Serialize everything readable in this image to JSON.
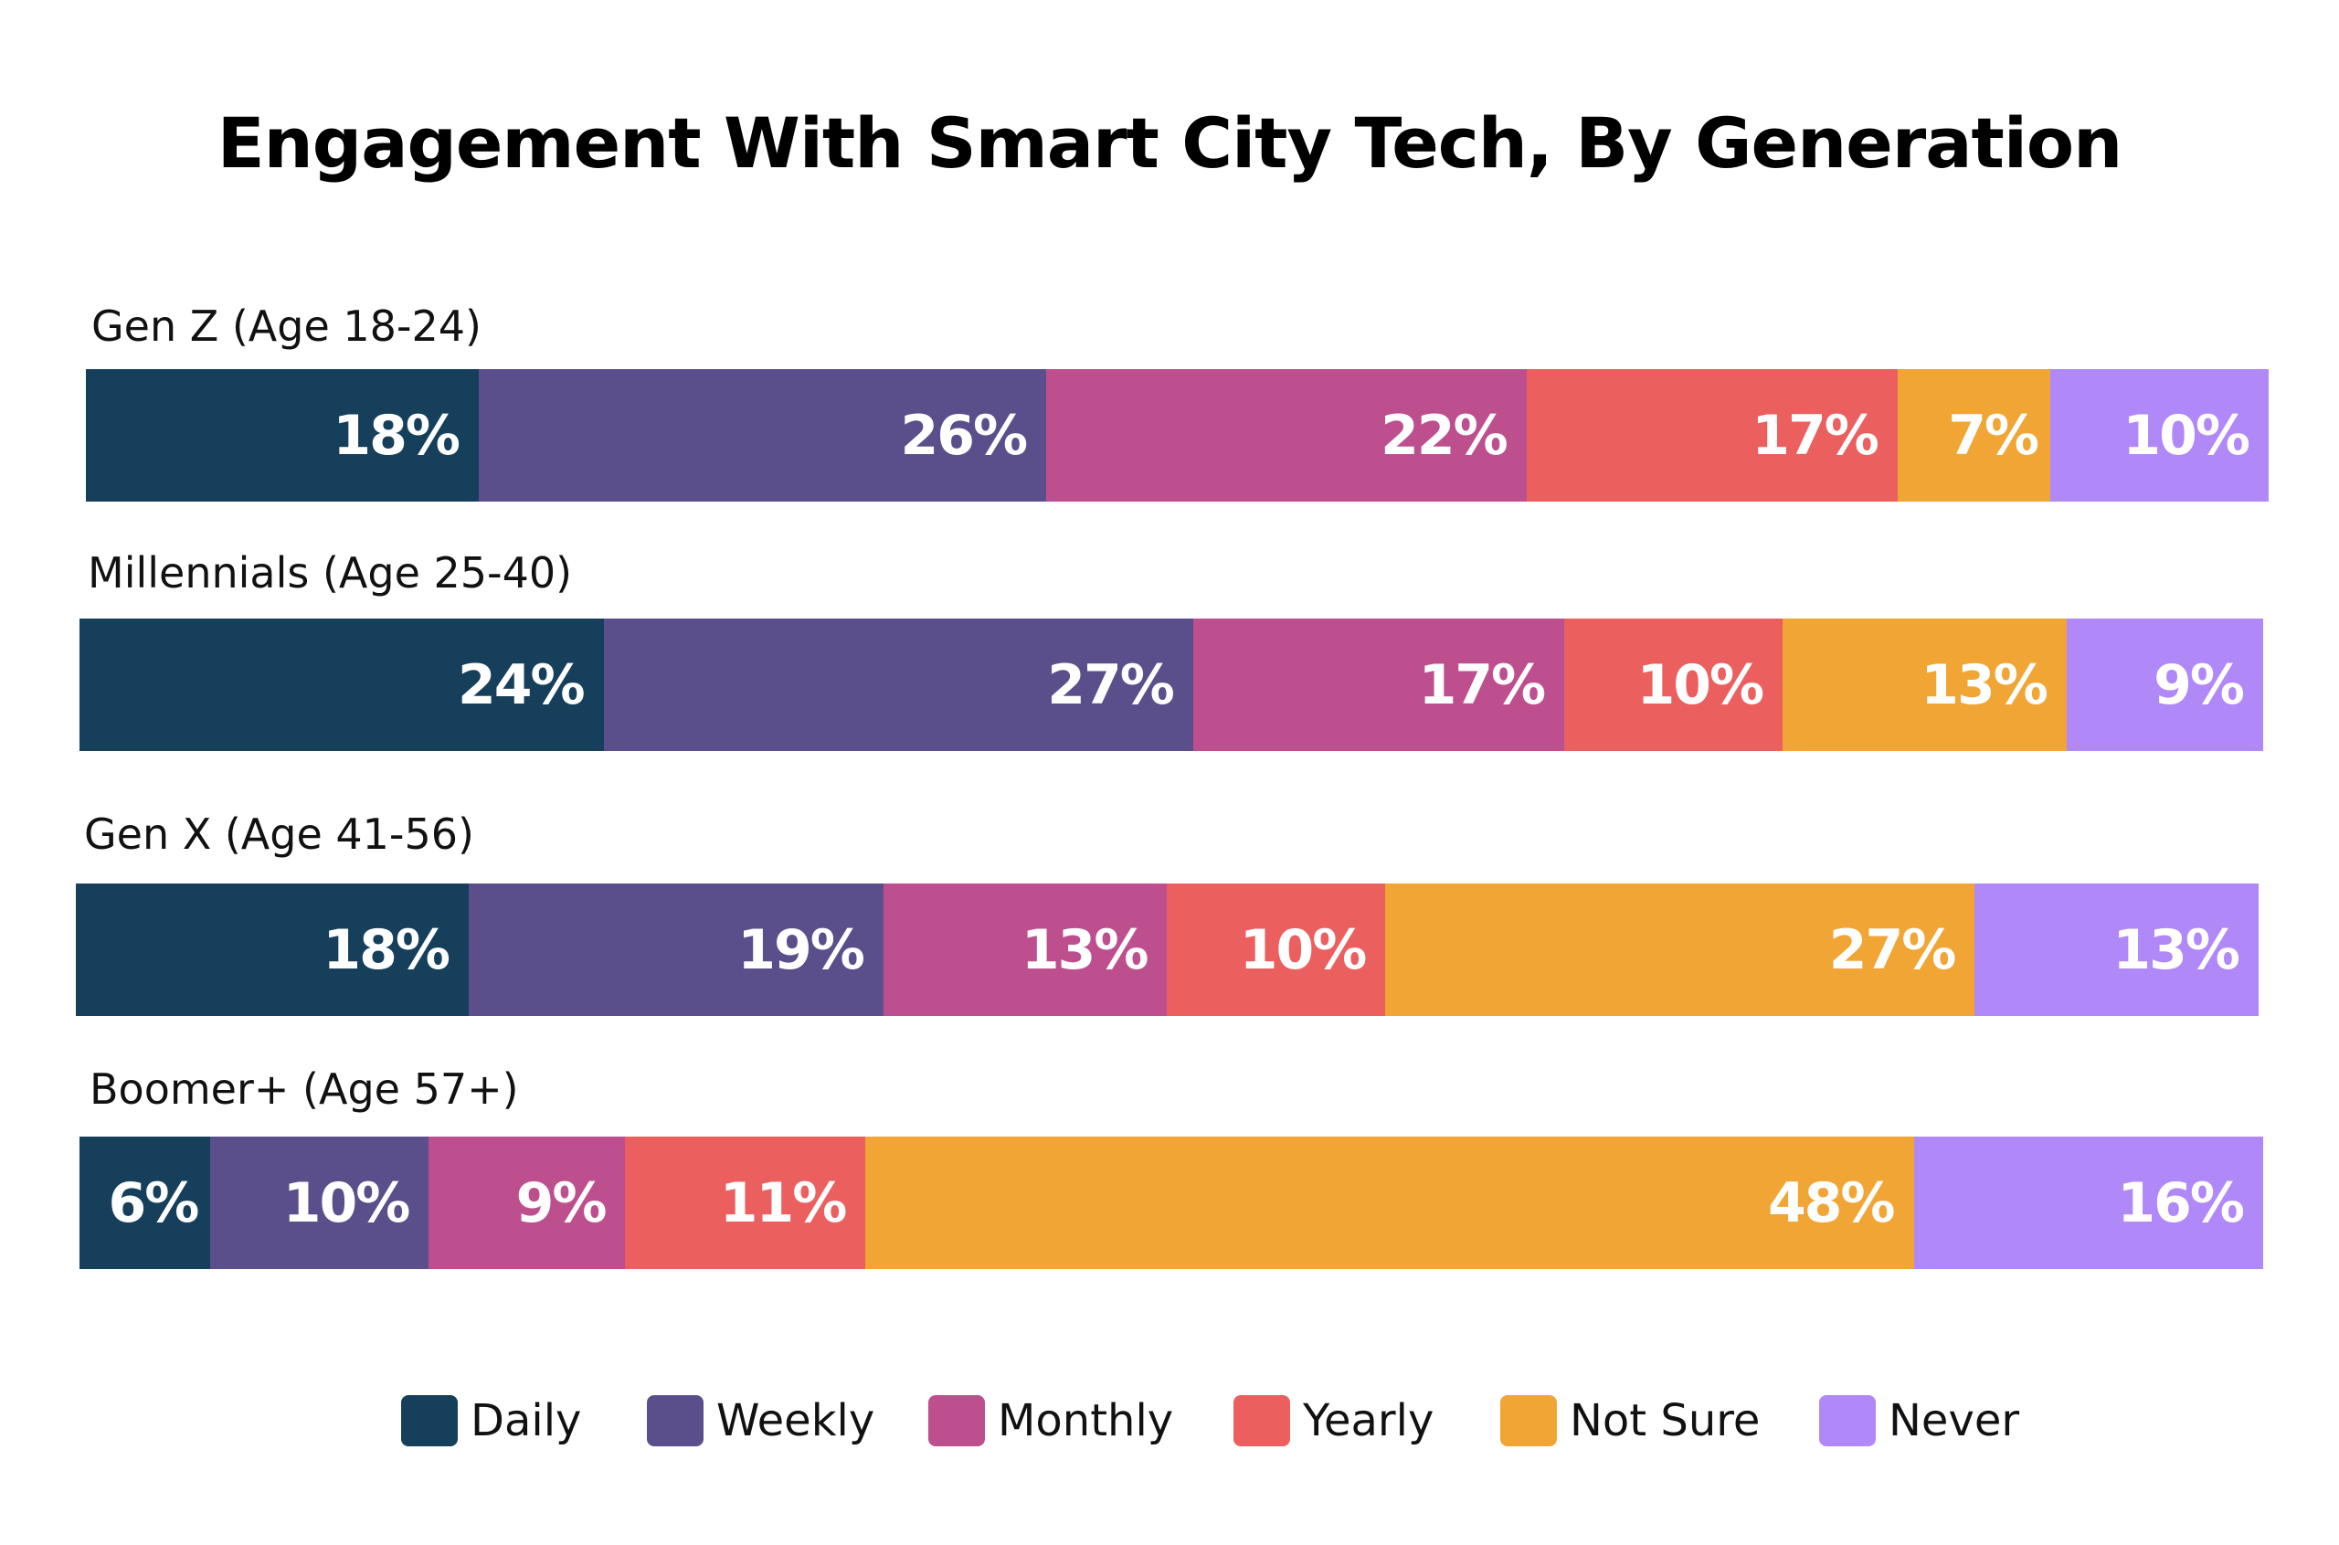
{
  "chart_data": {
    "type": "bar",
    "orientation": "horizontal",
    "stacked": true,
    "title": "Engagement With Smart City Tech, By Generation",
    "categories": [
      "Gen Z (Age 18-24)",
      "Millennials (Age 25-40)",
      "Gen X (Age 41-56)",
      "Boomer+ (Age 57+)"
    ],
    "series": [
      {
        "name": "Daily",
        "color": "#163f5c",
        "values": [
          18,
          24,
          18,
          6
        ]
      },
      {
        "name": "Weekly",
        "color": "#5a4f8b",
        "values": [
          26,
          27,
          19,
          10
        ]
      },
      {
        "name": "Monthly",
        "color": "#be4f8e",
        "values": [
          22,
          17,
          13,
          9
        ]
      },
      {
        "name": "Yearly",
        "color": "#eb5f5f",
        "values": [
          17,
          10,
          10,
          11
        ]
      },
      {
        "name": "Not Sure",
        "color": "#f1a534",
        "values": [
          7,
          13,
          27,
          48
        ]
      },
      {
        "name": "Never",
        "color": "#b088f7",
        "values": [
          10,
          9,
          13,
          16
        ]
      }
    ],
    "unit": "%",
    "legend": "bottom",
    "grid": false
  }
}
